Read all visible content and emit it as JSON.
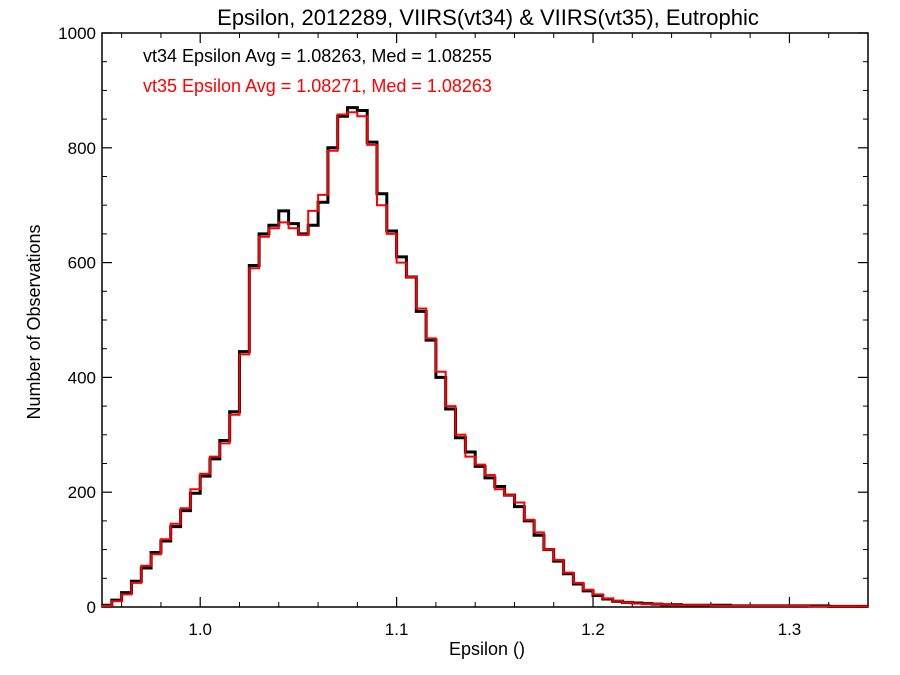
{
  "chart_data": {
    "type": "line",
    "title": "Epsilon, 2012289, VIIRS(vt34) & VIIRS(vt35), Eutrophic",
    "xlabel": "Epsilon ()",
    "ylabel": "Number of Observations",
    "xlim": [
      0.95,
      1.34
    ],
    "ylim": [
      0,
      1000
    ],
    "xticks": [
      1.0,
      1.1,
      1.2,
      1.3
    ],
    "xtick_labels": [
      "1.0",
      "1.1",
      "1.2",
      "1.3"
    ],
    "yticks": [
      0,
      200,
      400,
      600,
      800,
      1000
    ],
    "ytick_labels": [
      "0",
      "200",
      "400",
      "600",
      "800",
      "1000"
    ],
    "grid": false,
    "annotations": [
      {
        "text": "vt34 Epsilon Avg = 1.08263, Med = 1.08255",
        "color": "#000000"
      },
      {
        "text": "vt35 Epsilon Avg = 1.08271, Med = 1.08263",
        "color": "#ff0000"
      }
    ],
    "x": [
      0.95,
      0.955,
      0.96,
      0.965,
      0.97,
      0.975,
      0.98,
      0.985,
      0.99,
      0.995,
      1.0,
      1.005,
      1.01,
      1.015,
      1.02,
      1.025,
      1.03,
      1.035,
      1.04,
      1.045,
      1.05,
      1.055,
      1.06,
      1.065,
      1.07,
      1.075,
      1.08,
      1.085,
      1.09,
      1.095,
      1.1,
      1.105,
      1.11,
      1.115,
      1.12,
      1.125,
      1.13,
      1.135,
      1.14,
      1.145,
      1.15,
      1.155,
      1.16,
      1.165,
      1.17,
      1.175,
      1.18,
      1.185,
      1.19,
      1.195,
      1.2,
      1.205,
      1.21,
      1.215,
      1.22,
      1.225,
      1.23,
      1.235,
      1.24,
      1.245,
      1.25,
      1.26,
      1.27,
      1.28,
      1.29,
      1.3,
      1.31,
      1.32,
      1.33,
      1.34
    ],
    "series": [
      {
        "color": "#000000",
        "values": [
          3,
          12,
          25,
          45,
          68,
          95,
          115,
          140,
          168,
          198,
          228,
          258,
          290,
          340,
          445,
          595,
          650,
          665,
          690,
          668,
          650,
          665,
          705,
          800,
          855,
          870,
          865,
          810,
          720,
          655,
          610,
          575,
          515,
          465,
          400,
          345,
          295,
          270,
          245,
          225,
          210,
          195,
          175,
          150,
          125,
          100,
          80,
          58,
          40,
          28,
          20,
          14,
          10,
          8,
          7,
          6,
          5,
          4,
          4,
          3,
          3,
          3,
          2,
          2,
          2,
          2,
          2,
          1,
          1,
          1
        ]
      },
      {
        "color": "#ff0000",
        "values": [
          2,
          10,
          22,
          42,
          72,
          92,
          118,
          145,
          172,
          205,
          232,
          262,
          285,
          335,
          440,
          590,
          645,
          660,
          670,
          660,
          648,
          690,
          718,
          795,
          858,
          862,
          855,
          805,
          700,
          650,
          600,
          575,
          520,
          468,
          410,
          350,
          300,
          262,
          248,
          230,
          205,
          195,
          182,
          152,
          130,
          100,
          82,
          60,
          42,
          30,
          22,
          15,
          11,
          8,
          6,
          5,
          5,
          4,
          3,
          3,
          3,
          2,
          2,
          2,
          2,
          2,
          1,
          1,
          1,
          1
        ]
      }
    ]
  }
}
